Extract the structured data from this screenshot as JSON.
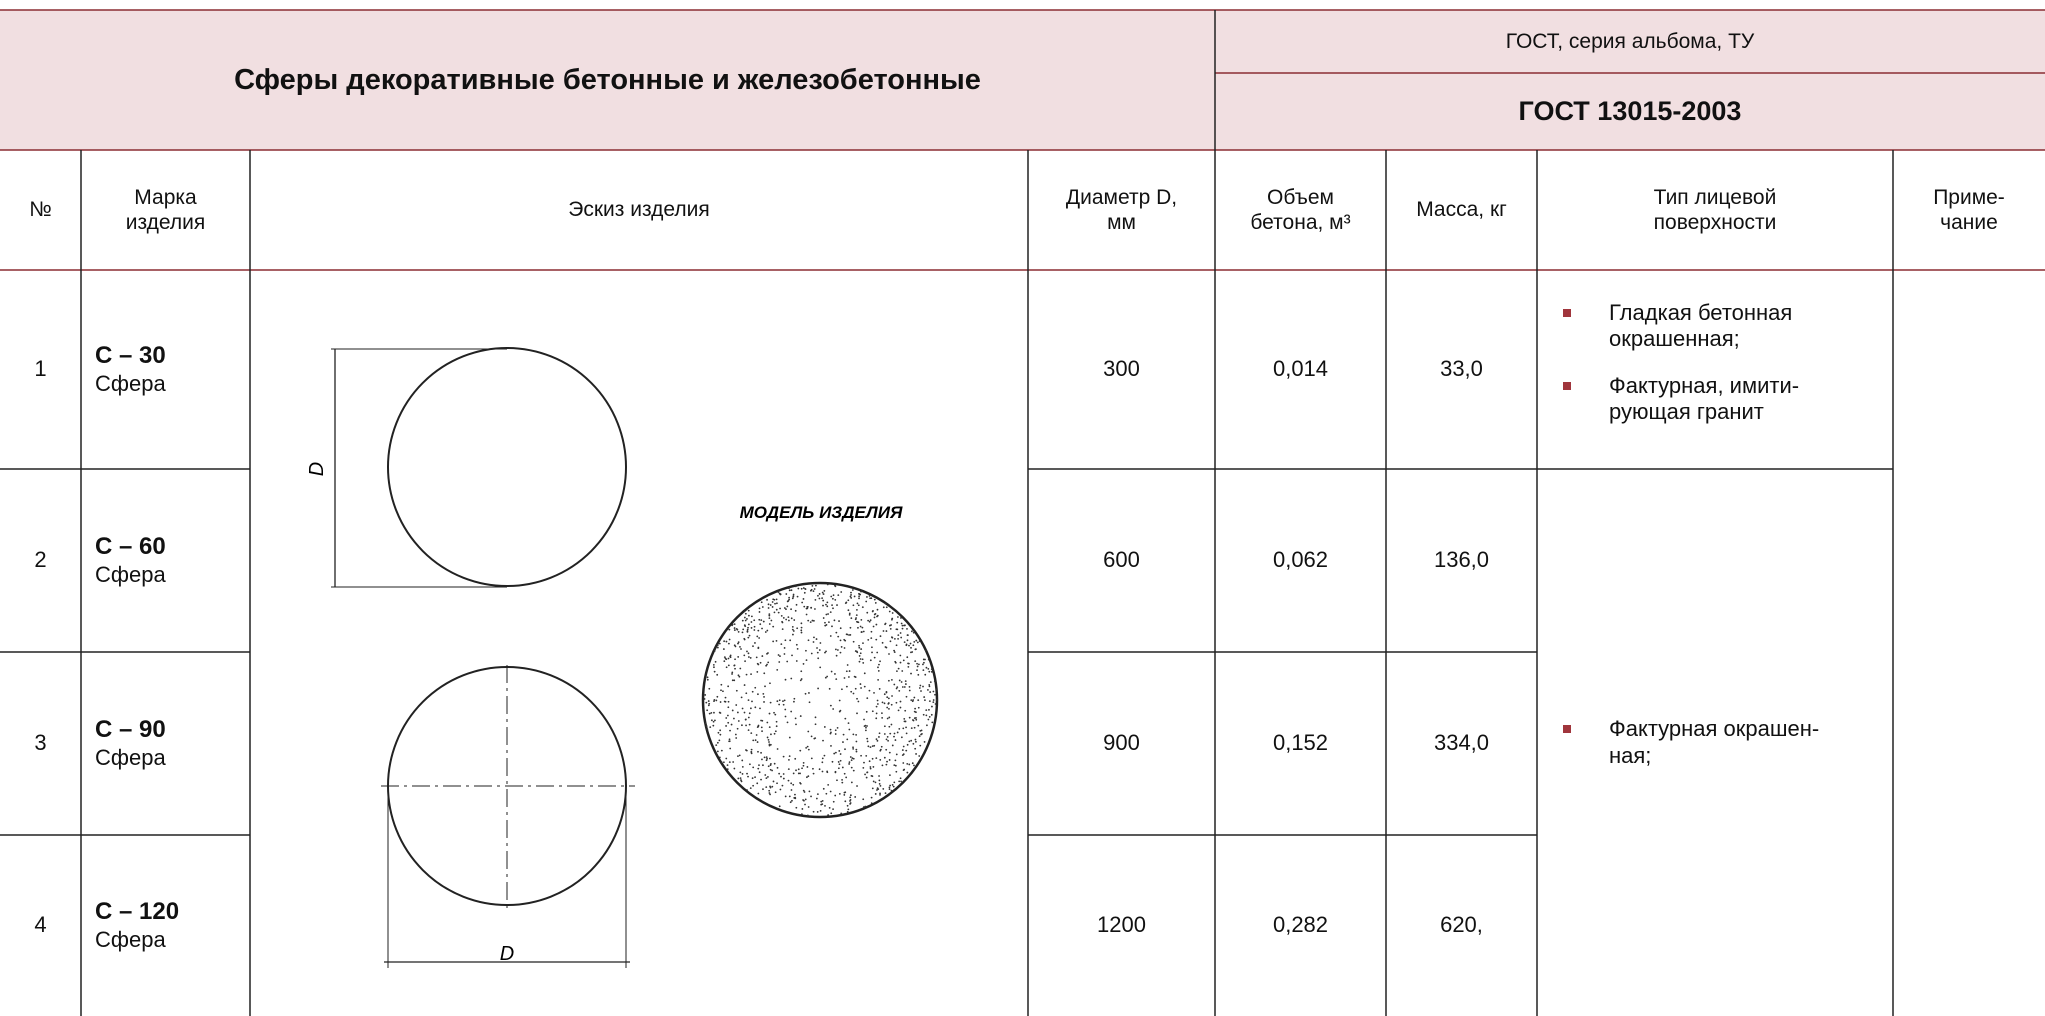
{
  "header": {
    "title": "Сферы декоративные бетонные и железобетонные",
    "standard_label": "ГОСТ, серия альбома, ТУ",
    "standard": "ГОСТ 13015-2003"
  },
  "table": {
    "columns": [
      "№",
      "Марка\nизделия",
      "Эскиз изделия",
      "Диаметр D,\nмм",
      "Объем\nбетона, м³",
      "Масса, кг",
      "Тип лицевой\nповерхности",
      "Приме-\nчание"
    ],
    "rows": [
      {
        "number": "1",
        "mark": "С – 30",
        "name": "Сфера",
        "diameter": "300",
        "volume": "0,014",
        "mass": "33,0"
      },
      {
        "number": "2",
        "mark": "С – 60",
        "name": "Сфера",
        "diameter": "600",
        "volume": "0,062",
        "mass": "136,0"
      },
      {
        "number": "3",
        "mark": "С – 90",
        "name": "Сфера",
        "diameter": "900",
        "volume": "0,152",
        "mass": "334,0"
      },
      {
        "number": "4",
        "mark": "С – 120",
        "name": "Сфера",
        "diameter": "1200",
        "volume": "0,282",
        "mass": "620,"
      }
    ],
    "surface": [
      {
        "items": [
          "Гладкая бетонная\nокрашенная;",
          "Фактурная, имити-\nрующая гранит"
        ]
      },
      {
        "items": [
          "Фактурная окрашен-\nная;"
        ]
      }
    ]
  },
  "sketch": {
    "dimension_top": "D",
    "dimension_bottom": "D",
    "model_label": "МОДЕЛЬ ИЗДЕЛИЯ"
  }
}
